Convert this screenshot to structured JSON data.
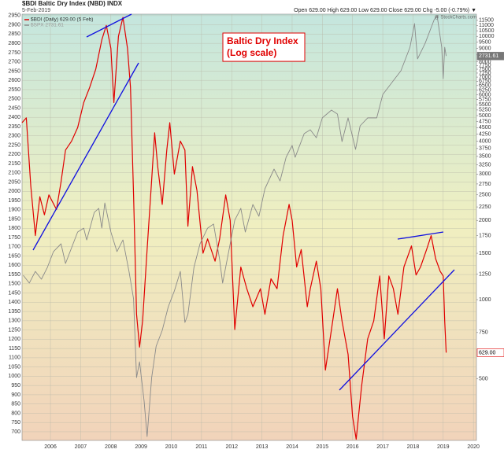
{
  "chart_data": {
    "type": "line",
    "title": "$BDI Baltic Dry Index (NBD) INDX",
    "subtitle": "5-Feb-2019",
    "quote": "Open 629.00  High 629.00  Low 629.00  Close 629.00  Chg -5.00 (-0.79%) ▼",
    "credit": "@ StockCharts.com",
    "annotation": [
      "Baltic Dry Index",
      "(Log scale)"
    ],
    "xlim": [
      2005.06,
      2020.1
    ],
    "xticks": [
      2006,
      2007,
      2008,
      2009,
      2010,
      2011,
      2012,
      2013,
      2014,
      2015,
      2016,
      2017,
      2018,
      2019,
      2020
    ],
    "ylim": [
      653,
      2958
    ],
    "yticks": [
      700,
      750,
      800,
      850,
      900,
      950,
      1000,
      1050,
      1100,
      1150,
      1200,
      1250,
      1300,
      1350,
      1400,
      1450,
      1500,
      1550,
      1600,
      1650,
      1700,
      1750,
      1800,
      1850,
      1900,
      1950,
      2000,
      2050,
      2100,
      2150,
      2200,
      2250,
      2300,
      2350,
      2400,
      2450,
      2500,
      2550,
      2600,
      2650,
      2700,
      2750,
      2800,
      2850,
      2900,
      2950
    ],
    "y2lim": [
      292,
      12140
    ],
    "y2log": true,
    "y2ticks": [
      500,
      750,
      1000,
      1250,
      1500,
      1750,
      2000,
      2250,
      2500,
      2750,
      3000,
      3250,
      3500,
      3750,
      4000,
      4250,
      4500,
      4750,
      5000,
      5250,
      5500,
      5750,
      6000,
      6250,
      6500,
      6750,
      7000,
      7250,
      7500,
      7750,
      8000,
      8500,
      9000,
      9500,
      10000,
      10500,
      11000,
      11500
    ],
    "grid": true,
    "series": [
      {
        "name": "$BDI (Daily) 629.00 (5 Feb)",
        "color": "#e00000",
        "axis": "y2",
        "end_label": "629.00",
        "x": [
          2005.06,
          2005.2,
          2005.35,
          2005.5,
          2005.65,
          2005.8,
          2005.95,
          2006.2,
          2006.35,
          2006.5,
          2006.7,
          2006.9,
          2007.1,
          2007.3,
          2007.5,
          2007.7,
          2007.85,
          2008.0,
          2008.1,
          2008.25,
          2008.4,
          2008.55,
          2008.65,
          2008.75,
          2008.85,
          2008.95,
          2009.05,
          2009.2,
          2009.35,
          2009.45,
          2009.55,
          2009.7,
          2009.85,
          2009.95,
          2010.1,
          2010.3,
          2010.45,
          2010.55,
          2010.7,
          2010.85,
          2011.05,
          2011.2,
          2011.45,
          2011.6,
          2011.8,
          2011.95,
          2012.1,
          2012.3,
          2012.5,
          2012.7,
          2012.95,
          2013.1,
          2013.3,
          2013.5,
          2013.7,
          2013.9,
          2014.0,
          2014.15,
          2014.3,
          2014.5,
          2014.6,
          2014.8,
          2014.95,
          2015.1,
          2015.3,
          2015.5,
          2015.65,
          2015.85,
          2016.0,
          2016.12,
          2016.3,
          2016.5,
          2016.7,
          2016.9,
          2017.05,
          2017.2,
          2017.35,
          2017.5,
          2017.7,
          2017.95,
          2018.1,
          2018.25,
          2018.45,
          2018.6,
          2018.75,
          2018.9,
          2019.0,
          2019.05,
          2019.1
        ],
        "values": [
          4700,
          4900,
          2700,
          1750,
          2460,
          2100,
          2500,
          2200,
          2800,
          3700,
          4000,
          4500,
          5600,
          6400,
          7500,
          9700,
          11000,
          9000,
          5600,
          10000,
          11800,
          9000,
          6400,
          2500,
          880,
          660,
          830,
          1550,
          2850,
          4300,
          3200,
          2300,
          3700,
          4700,
          3000,
          4000,
          3700,
          1900,
          3200,
          2600,
          1500,
          1700,
          1400,
          1700,
          2500,
          2000,
          770,
          1330,
          1100,
          940,
          1100,
          880,
          1200,
          1100,
          1750,
          2300,
          2000,
          1330,
          1550,
          940,
          1100,
          1400,
          1100,
          540,
          770,
          1100,
          830,
          620,
          360,
          295,
          470,
          710,
          830,
          1230,
          710,
          1230,
          1100,
          880,
          1330,
          1600,
          1240,
          1330,
          1550,
          1750,
          1430,
          1280,
          1230,
          830,
          629
        ]
      },
      {
        "name": "$SPX 2731.61",
        "color": "#8a8a8a",
        "axis": "y",
        "end_label": "2731.61",
        "x": [
          2005.1,
          2005.3,
          2005.5,
          2005.7,
          2005.9,
          2006.1,
          2006.35,
          2006.5,
          2006.7,
          2006.9,
          2007.1,
          2007.2,
          2007.45,
          2007.6,
          2007.7,
          2007.8,
          2008.0,
          2008.2,
          2008.4,
          2008.6,
          2008.75,
          2008.85,
          2008.95,
          2009.1,
          2009.2,
          2009.35,
          2009.5,
          2009.7,
          2009.9,
          2010.1,
          2010.3,
          2010.45,
          2010.55,
          2010.75,
          2010.95,
          2011.2,
          2011.4,
          2011.6,
          2011.7,
          2011.9,
          2012.1,
          2012.3,
          2012.45,
          2012.7,
          2012.9,
          2013.1,
          2013.4,
          2013.6,
          2013.8,
          2014.0,
          2014.1,
          2014.4,
          2014.6,
          2014.8,
          2015.0,
          2015.3,
          2015.5,
          2015.65,
          2015.85,
          2016.1,
          2016.25,
          2016.5,
          2016.8,
          2017.0,
          2017.3,
          2017.6,
          2017.9,
          2018.05,
          2018.15,
          2018.4,
          2018.7,
          2018.8,
          2018.95,
          2019.0,
          2019.05,
          2019.1
        ],
        "values": [
          1546,
          1504,
          1567,
          1525,
          1589,
          1674,
          1716,
          1610,
          1695,
          1780,
          1801,
          1737,
          1886,
          1908,
          1801,
          1937,
          1780,
          1674,
          1737,
          1567,
          1419,
          993,
          1078,
          866,
          674,
          993,
          1163,
          1248,
          1376,
          1461,
          1567,
          1291,
          1334,
          1589,
          1716,
          1801,
          1823,
          1631,
          1504,
          1674,
          1844,
          1908,
          1780,
          1929,
          1865,
          2014,
          2120,
          2056,
          2184,
          2248,
          2184,
          2312,
          2333,
          2290,
          2397,
          2439,
          2418,
          2269,
          2397,
          2227,
          2354,
          2397,
          2397,
          2524,
          2588,
          2652,
          2779,
          2907,
          2716,
          2800,
          2928,
          2949,
          2779,
          2609,
          2779,
          2731.61
        ]
      }
    ]
  }
}
